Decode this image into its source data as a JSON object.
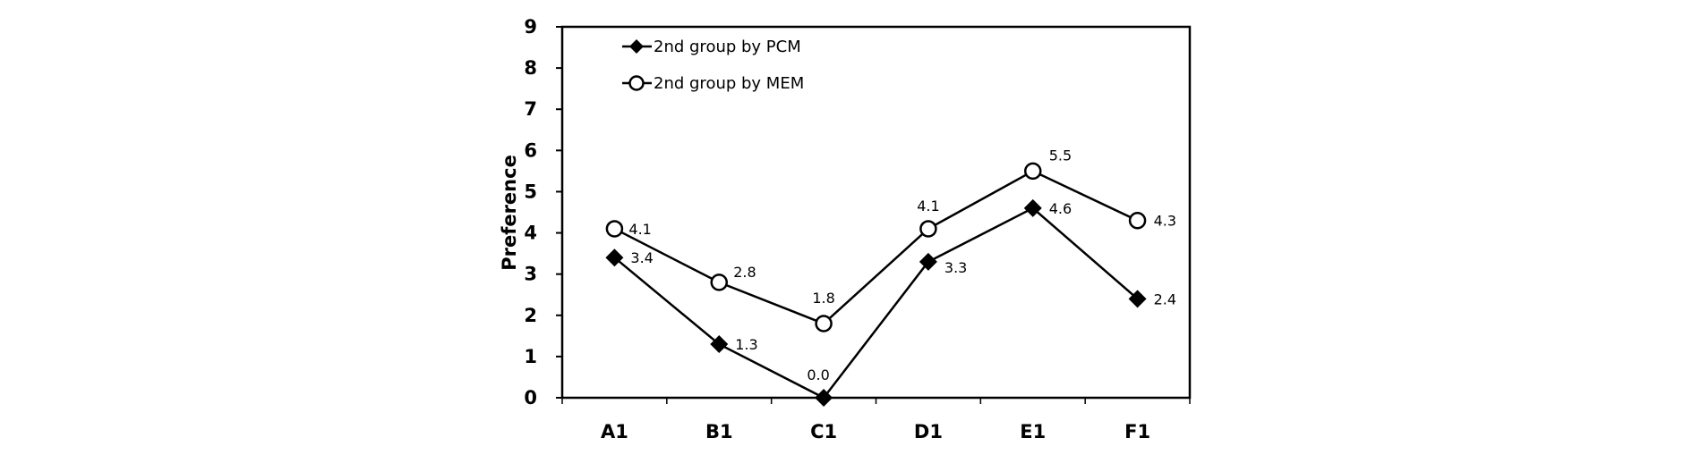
{
  "chart_data": {
    "type": "line",
    "categories": [
      "A1",
      "B1",
      "C1",
      "D1",
      "E1",
      "F1"
    ],
    "ylabel": "Preference",
    "xlabel": "",
    "ylim": [
      0,
      9
    ],
    "yticks": [
      "0",
      "1",
      "2",
      "3",
      "4",
      "5",
      "6",
      "7",
      "8",
      "9"
    ],
    "grid": false,
    "legend_position": "top-left",
    "series": [
      {
        "name": "2nd group by PCM",
        "marker": "diamond-filled",
        "color": "#000000",
        "values": [
          3.4,
          1.3,
          0.0,
          3.3,
          4.6,
          2.4
        ],
        "labels": [
          "3.4",
          "1.3",
          "0.0",
          "3.3",
          "4.6",
          "2.4"
        ]
      },
      {
        "name": "2nd group by MEM",
        "marker": "circle-open",
        "color": "#000000",
        "values": [
          4.1,
          2.8,
          1.8,
          4.1,
          5.5,
          4.3
        ],
        "labels": [
          "4.1",
          "2.8",
          "1.8",
          "4.1",
          "5.5",
          "4.3"
        ]
      }
    ]
  }
}
